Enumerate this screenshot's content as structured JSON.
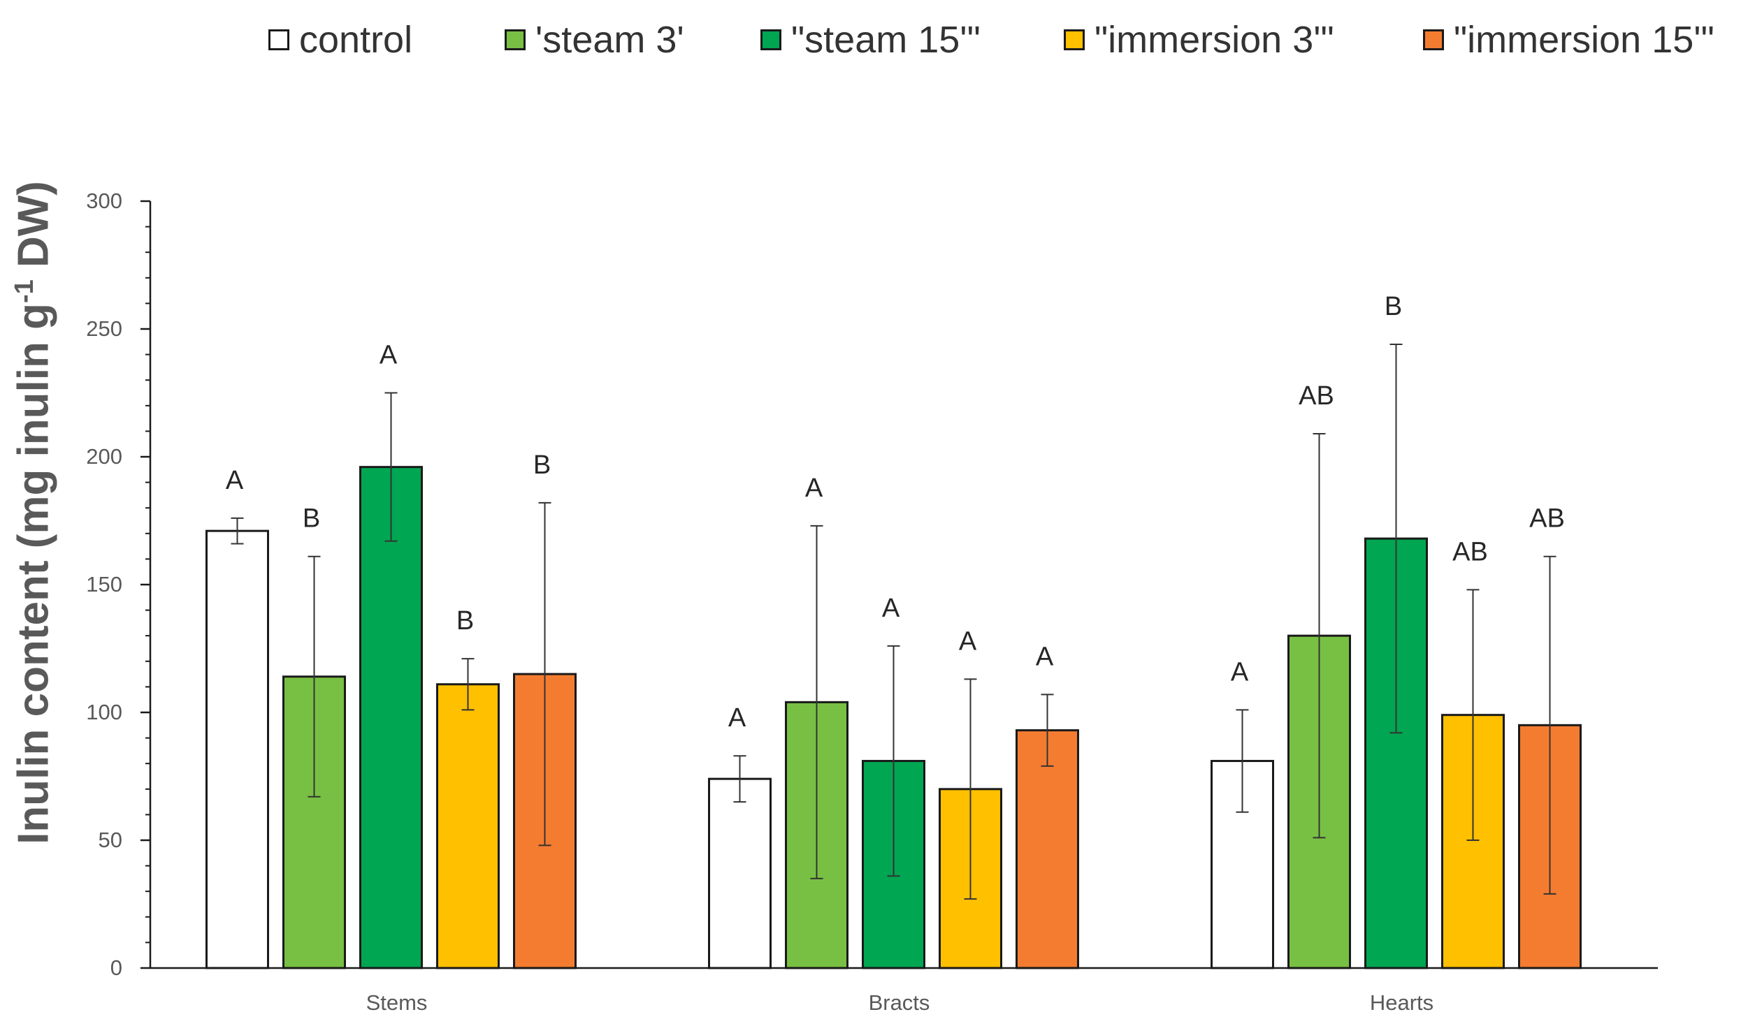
{
  "chart_data": {
    "type": "bar",
    "title": "",
    "xlabel": "",
    "ylabel": {
      "prefix": "Inulin content (mg inulin g",
      "superscript": "-1",
      "suffix": " DW)"
    },
    "ylim": [
      0,
      300
    ],
    "yticks": [
      0,
      50,
      100,
      150,
      200,
      250,
      300
    ],
    "grid": false,
    "legend_position": "top",
    "categories": [
      "Stems",
      "Bracts",
      "Hearts"
    ],
    "series": [
      {
        "name": "control",
        "color": "#ffffff",
        "values": [
          171,
          74,
          81
        ],
        "errors": [
          5,
          9,
          20
        ],
        "letters": [
          "A",
          "A",
          "A"
        ]
      },
      {
        "name": "'steam 3'",
        "color": "#78c043",
        "values": [
          114,
          104,
          130
        ],
        "errors": [
          47,
          69,
          79
        ],
        "letters": [
          "B",
          "A",
          "AB"
        ]
      },
      {
        "name": "\"steam 15'\"",
        "color": "#00a651",
        "values": [
          196,
          81,
          168
        ],
        "errors": [
          29,
          45,
          76
        ],
        "letters": [
          "A",
          "A",
          "B"
        ]
      },
      {
        "name": "\"immersion 3'\"",
        "color": "#ffc000",
        "values": [
          111,
          70,
          99
        ],
        "errors": [
          10,
          43,
          49
        ],
        "letters": [
          "B",
          "A",
          "AB"
        ]
      },
      {
        "name": "\"immersion 15'\"",
        "color": "#f47c30",
        "values": [
          115,
          93,
          95
        ],
        "errors": [
          67,
          14,
          66
        ],
        "letters": [
          "B",
          "A",
          "AB"
        ]
      }
    ]
  }
}
